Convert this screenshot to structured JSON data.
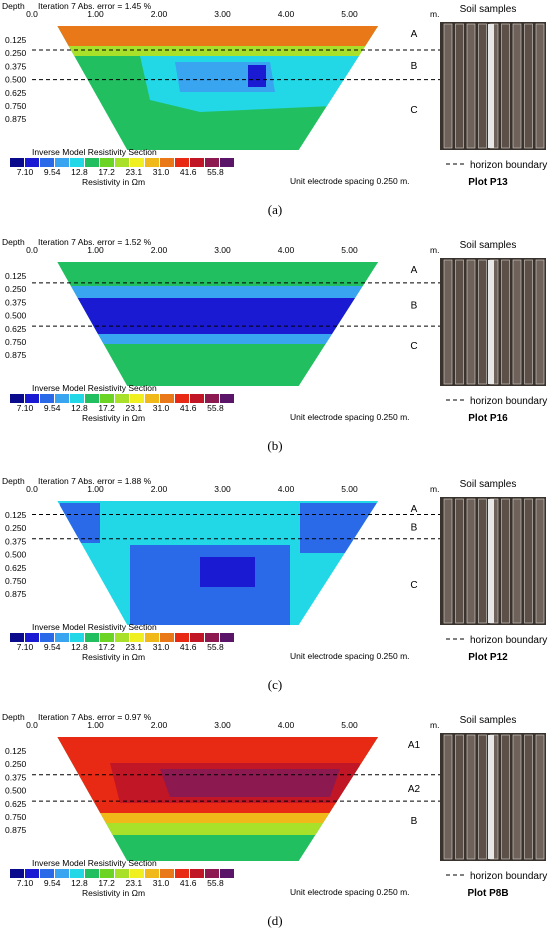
{
  "common": {
    "depth_label": "Depth",
    "x_unit": "m.",
    "x_ticks": [
      "0.0",
      "1.00",
      "2.00",
      "3.00",
      "4.00",
      "5.00"
    ],
    "depth_ticks": [
      "0.125",
      "0.250",
      "0.375",
      "0.500",
      "0.625",
      "0.750",
      "0.875"
    ],
    "legend_title": "Inverse Model Resistivity Section",
    "legend_values": [
      "7.10",
      "9.54",
      "12.8",
      "17.2",
      "23.1",
      "31.0",
      "41.6",
      "55.8"
    ],
    "legend_colors": [
      "#0a0a8c",
      "#1a1ad2",
      "#2a6ae8",
      "#39a4f0",
      "#22d8e6",
      "#22bf60",
      "#6cd424",
      "#a8e02a",
      "#f0f020",
      "#f0b818",
      "#e87818",
      "#e82a14",
      "#c01626",
      "#8c1a50",
      "#5a1468"
    ],
    "resistivity_label": "Resistivity in  Ωm",
    "spacing_label": "Unit electrode spacing 0.250 m.",
    "soil_samples_label": "Soil samples",
    "horizon_legend": "horizon boundary",
    "boundary_color": "#000000"
  },
  "chart_data": [
    {
      "type": "heatmap",
      "panel_label": "(a)",
      "title": "Iteration 7 Abs. error = 1.45 %",
      "plot_label": "Plot P13",
      "horizons": [
        "A",
        "B",
        "C"
      ],
      "boundaries_depth_m": [
        0.22,
        0.5
      ],
      "x_range_m": [
        0,
        5.5
      ],
      "depth_range_m": [
        0,
        0.95
      ],
      "resistivity_colors": [
        "#e87818",
        "#a8e02a",
        "#39a4f0",
        "#22d8e6",
        "#22bf60"
      ]
    },
    {
      "type": "heatmap",
      "panel_label": "(b)",
      "title": "Iteration 7 Abs. error = 1.52 %",
      "plot_label": "Plot P16",
      "horizons": [
        "A",
        "B",
        "C"
      ],
      "boundaries_depth_m": [
        0.19,
        0.6
      ],
      "x_range_m": [
        0,
        5.5
      ],
      "depth_range_m": [
        0,
        0.95
      ],
      "resistivity_colors": [
        "#22bf60",
        "#1a1ad2",
        "#39a4f0",
        "#22bf60"
      ]
    },
    {
      "type": "heatmap",
      "panel_label": "(c)",
      "title": "Iteration 7 Abs. error = 1.88 %",
      "plot_label": "Plot P12",
      "horizons": [
        "A",
        "B",
        "C"
      ],
      "boundaries_depth_m": [
        0.12,
        0.35
      ],
      "x_range_m": [
        0,
        5.5
      ],
      "depth_range_m": [
        0,
        0.95
      ],
      "resistivity_colors": [
        "#22d8e6",
        "#2a6ae8",
        "#1a1ad2"
      ]
    },
    {
      "type": "heatmap",
      "panel_label": "(d)",
      "title": "Iteration 7 Abs. error = 0.97 %",
      "plot_label": "Plot P8B",
      "horizons": [
        "A1",
        "A2",
        "B"
      ],
      "boundaries_depth_m": [
        0.35,
        0.6
      ],
      "x_range_m": [
        0,
        5.5
      ],
      "depth_range_m": [
        0,
        0.95
      ],
      "resistivity_colors": [
        "#e82a14",
        "#c01626",
        "#8c1a50",
        "#f0b818",
        "#a8e02a",
        "#22bf60"
      ]
    }
  ]
}
